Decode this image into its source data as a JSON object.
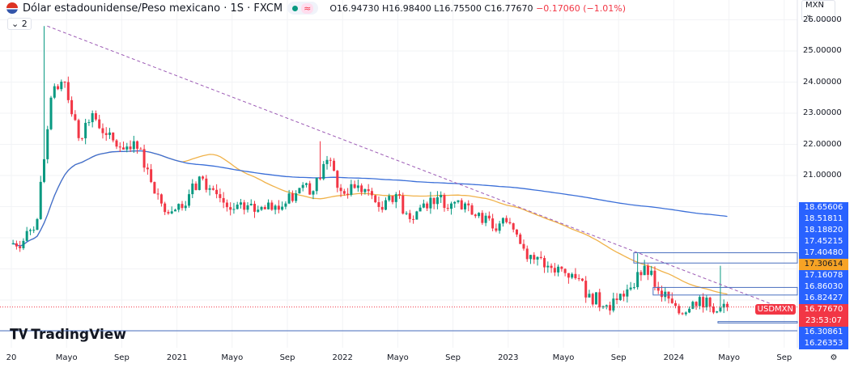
{
  "header": {
    "title": "Dólar estadounidense/Peso mexicano · 1S · FXCM",
    "open": "O16.94730",
    "high": "H16.98400",
    "low": "L16.75500",
    "close": "C16.77670",
    "change": "−0.17060 (−1.01%)",
    "collapse_label": "⌄ 2",
    "currency": "MXN ⌄"
  },
  "logo": "TradingView",
  "chart_data": {
    "type": "candlestick",
    "interval": "1 week",
    "symbol_label": "USDMXN",
    "monthly_closes_from_2020_01": [
      18.9,
      19.6,
      23.5,
      24.0,
      22.2,
      23.0,
      22.3,
      21.9,
      22.1,
      21.2,
      20.1,
      19.9,
      20.4,
      20.9,
      20.4,
      19.9,
      19.9,
      19.9,
      19.9,
      20.1,
      20.6,
      20.5,
      21.5,
      20.5,
      20.6,
      20.5,
      19.9,
      20.4,
      19.6,
      20.1,
      20.3,
      20.1,
      20.1,
      19.8,
      19.3,
      19.5,
      18.8,
      18.3,
      18.1,
      18.0,
      17.7,
      17.2,
      16.8,
      17.0,
      17.4,
      18.1,
      17.3,
      16.9,
      16.6,
      17.1,
      16.6,
      16.7767
    ],
    "notable_highs": [
      {
        "month": "2020-03",
        "high": 25.8
      },
      {
        "month": "2021-11",
        "high": 22.1
      },
      {
        "month": "2023-10",
        "high": 18.5
      },
      {
        "month": "2024-04",
        "high": 18.1
      }
    ],
    "moving_averages": [
      {
        "period": 50,
        "color": "#f0b24a"
      },
      {
        "period": 200,
        "color": "#3b6fd8"
      }
    ],
    "y_ticks": [
      "26.00000",
      "25.00000",
      "24.00000",
      "23.00000",
      "22.00000",
      "21.00000"
    ],
    "ylim": [
      15.9,
      26.1
    ],
    "x_ticks": [
      "20",
      "Mayo",
      "Sep",
      "2021",
      "Mayo",
      "Sep",
      "2022",
      "Mayo",
      "Sep",
      "2023",
      "Mayo",
      "Sep",
      "2024",
      "Mayo",
      "Sep"
    ],
    "price_labels": [
      {
        "text": "18.65606",
        "color": "#2962ff"
      },
      {
        "text": "18.51811",
        "color": "#2962ff"
      },
      {
        "text": "18.18820",
        "color": "#2962ff"
      },
      {
        "text": "17.45215",
        "color": "#2962ff"
      },
      {
        "text": "17.40480",
        "color": "#2962ff"
      },
      {
        "text": "17.30614",
        "color": "#f7a325"
      },
      {
        "text": "17.16078",
        "color": "#2962ff"
      },
      {
        "text": "16.86030",
        "color": "#2962ff"
      },
      {
        "text": "16.82427",
        "color": "#2962ff"
      },
      {
        "text": "16.77670",
        "color": "#f23645"
      },
      {
        "text": "23:53:07",
        "color": "#f23645"
      },
      {
        "text": "16.30861",
        "color": "#2962ff"
      },
      {
        "text": "16.26353",
        "color": "#2962ff"
      }
    ],
    "trendline": {
      "from": {
        "month": "2020-03",
        "price": 25.8
      },
      "to": {
        "month": "2024-09",
        "price": 16.8
      },
      "style": "dashed",
      "color": "#9c5bb5"
    },
    "up_color": "#089981",
    "down_color": "#f23645"
  }
}
